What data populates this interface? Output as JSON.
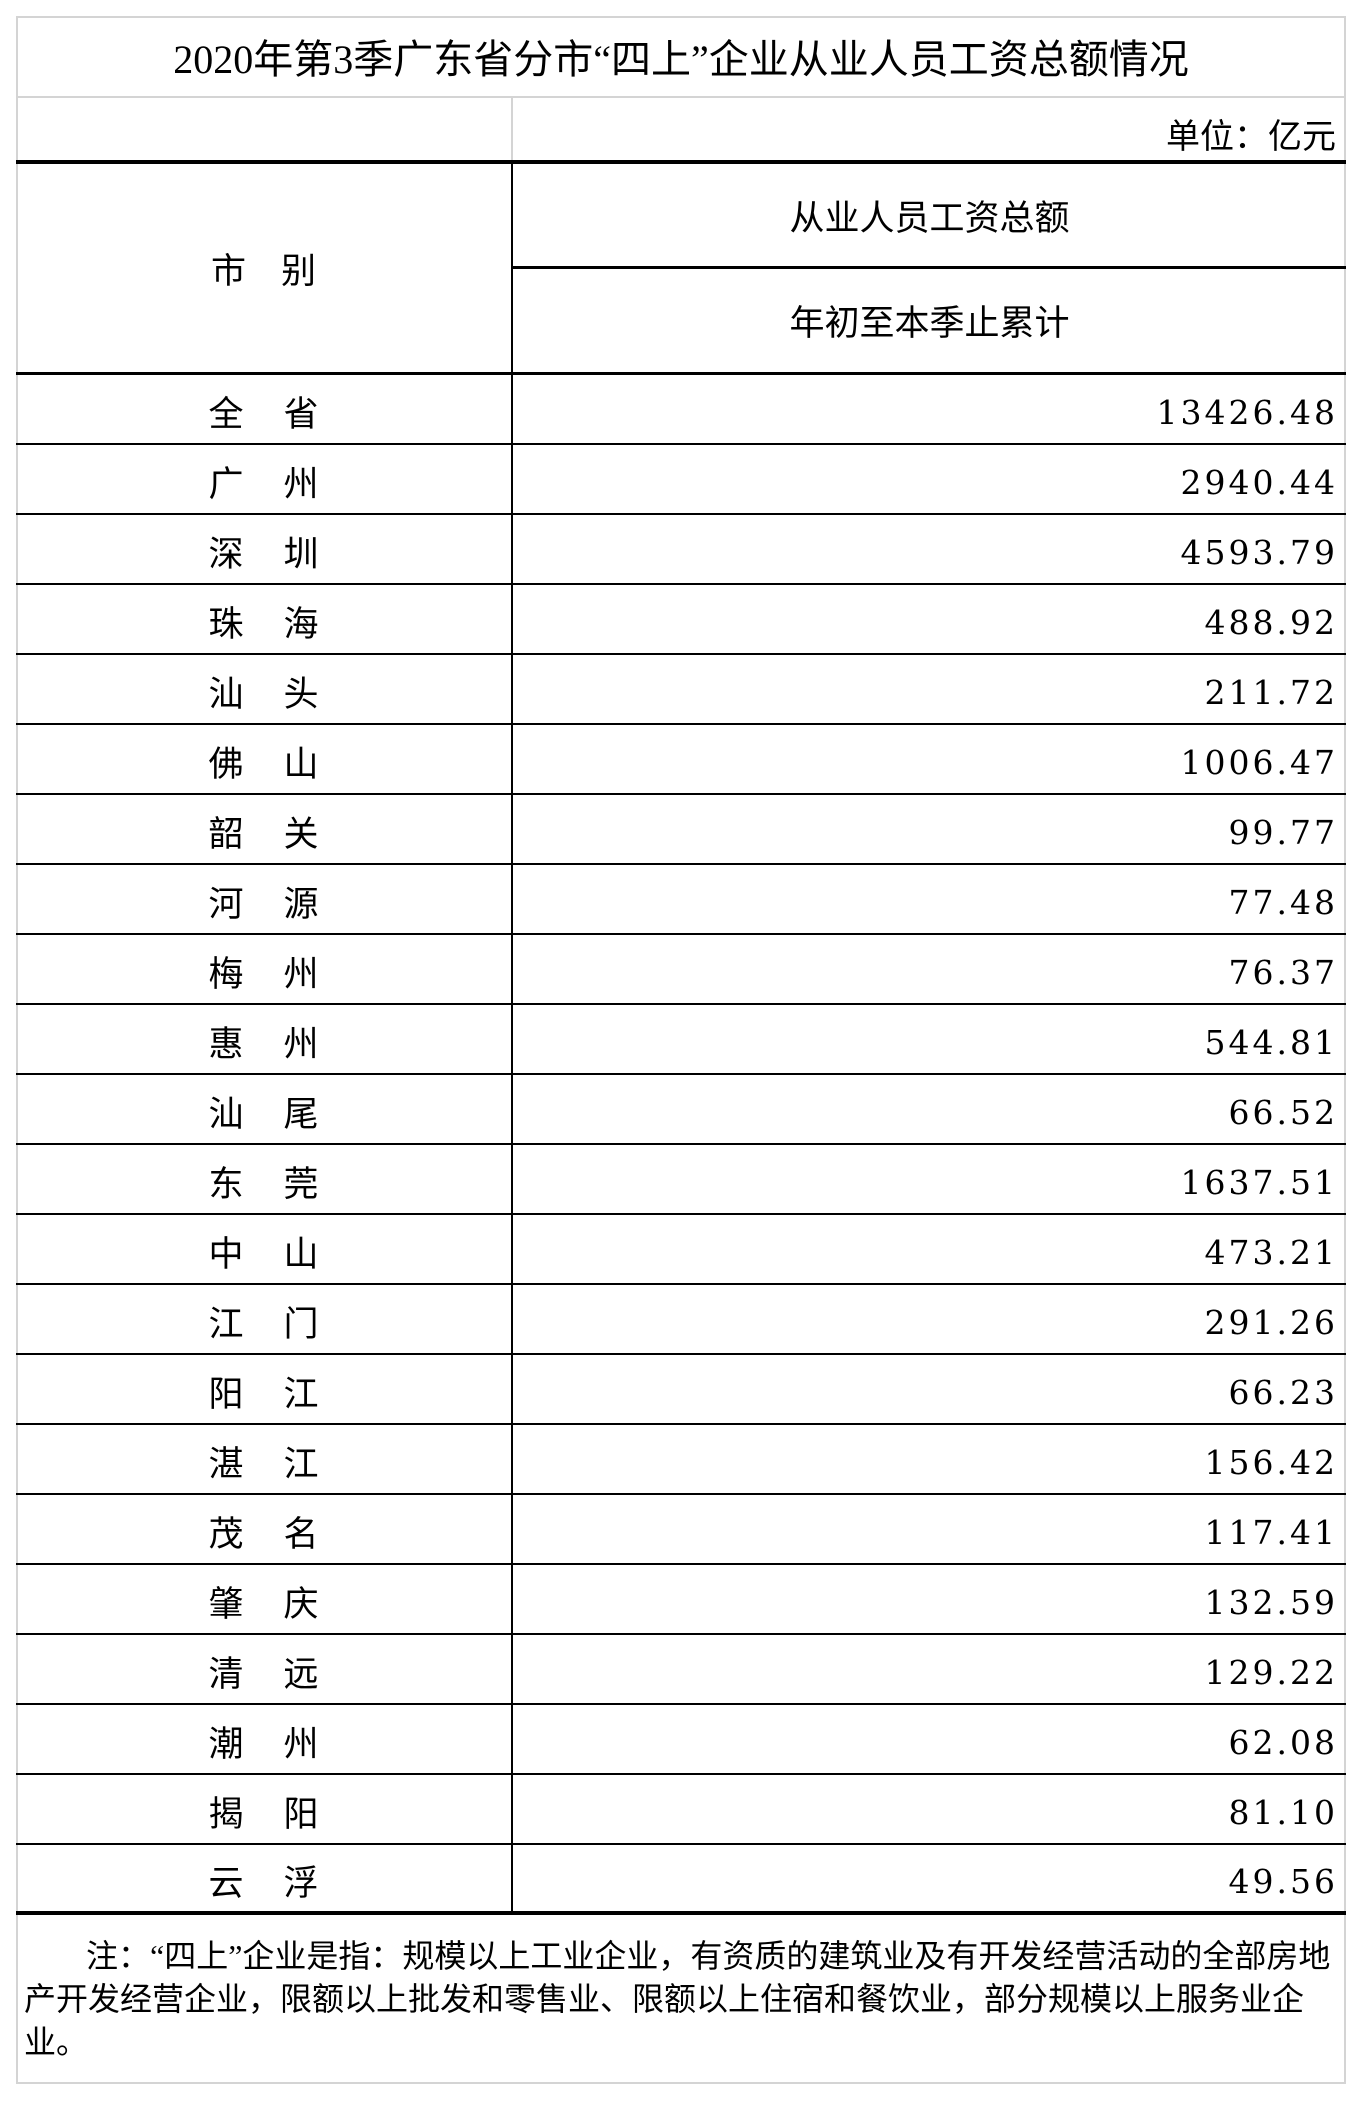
{
  "title": "2020年第3季广东省分市“四上”企业从业人员工资总额情况",
  "unit": "单位：亿元",
  "header": {
    "city": "市　别",
    "measure": "从业人员工资总额",
    "period": "年初至本季止累计"
  },
  "rows": [
    {
      "c1": "全",
      "c2": "省",
      "value": "13426.48"
    },
    {
      "c1": "广",
      "c2": "州",
      "value": "2940.44"
    },
    {
      "c1": "深",
      "c2": "圳",
      "value": "4593.79"
    },
    {
      "c1": "珠",
      "c2": "海",
      "value": "488.92"
    },
    {
      "c1": "汕",
      "c2": "头",
      "value": "211.72"
    },
    {
      "c1": "佛",
      "c2": "山",
      "value": "1006.47"
    },
    {
      "c1": "韶",
      "c2": "关",
      "value": "99.77"
    },
    {
      "c1": "河",
      "c2": "源",
      "value": "77.48"
    },
    {
      "c1": "梅",
      "c2": "州",
      "value": "76.37"
    },
    {
      "c1": "惠",
      "c2": "州",
      "value": "544.81"
    },
    {
      "c1": "汕",
      "c2": "尾",
      "value": "66.52"
    },
    {
      "c1": "东",
      "c2": "莞",
      "value": "1637.51"
    },
    {
      "c1": "中",
      "c2": "山",
      "value": "473.21"
    },
    {
      "c1": "江",
      "c2": "门",
      "value": "291.26"
    },
    {
      "c1": "阳",
      "c2": "江",
      "value": "66.23"
    },
    {
      "c1": "湛",
      "c2": "江",
      "value": "156.42"
    },
    {
      "c1": "茂",
      "c2": "名",
      "value": "117.41"
    },
    {
      "c1": "肇",
      "c2": "庆",
      "value": "132.59"
    },
    {
      "c1": "清",
      "c2": "远",
      "value": "129.22"
    },
    {
      "c1": "潮",
      "c2": "州",
      "value": "62.08"
    },
    {
      "c1": "揭",
      "c2": "阳",
      "value": "81.10"
    },
    {
      "c1": "云",
      "c2": "浮",
      "value": "49.56"
    }
  ],
  "note": "注：“四上”企业是指：规模以上工业企业，有资质的建筑业及有开发经营活动的全部房地产开发经营企业，限额以上批发和零售业、限额以上住宿和餐饮业，部分规模以上服务业企业。"
}
